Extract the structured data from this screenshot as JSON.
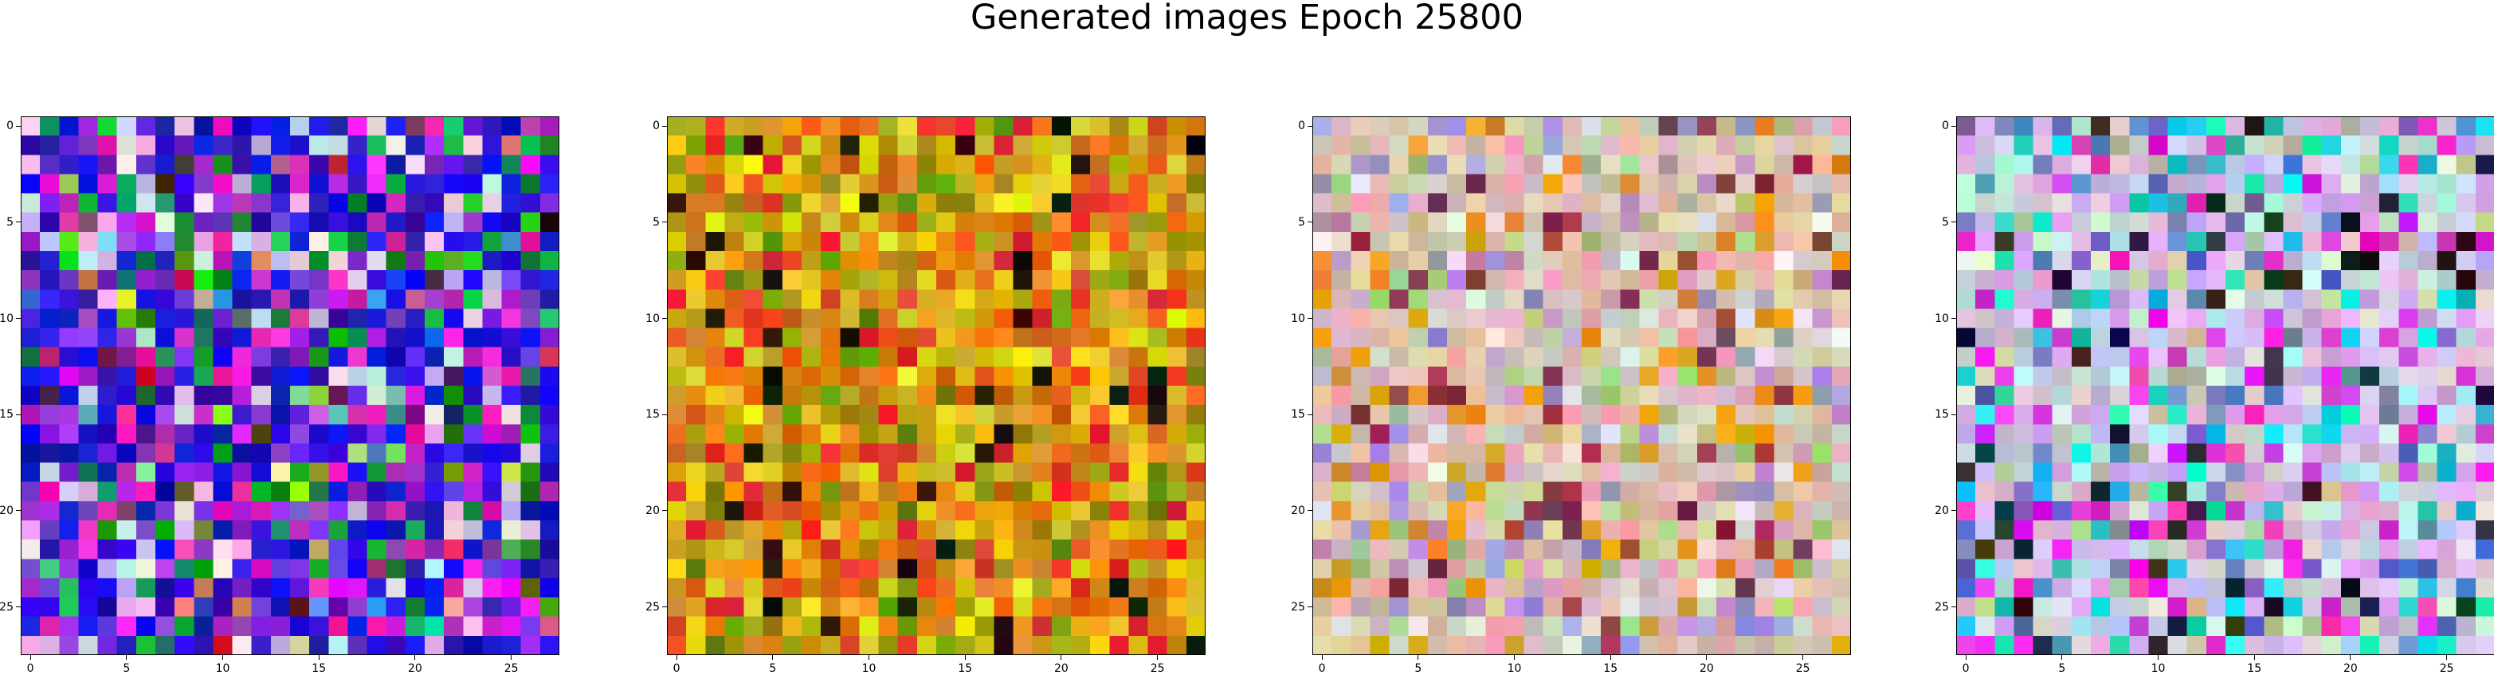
{
  "figure": {
    "title": "Generated images Epoch 25800"
  },
  "panels": [
    {
      "name": "generated-image-1",
      "palette": "blue-purple"
    },
    {
      "name": "generated-image-2",
      "palette": "yellow-orange"
    },
    {
      "name": "generated-image-3",
      "palette": "beige-muted"
    },
    {
      "name": "generated-image-4",
      "palette": "lilac-mixed"
    }
  ],
  "grid": {
    "rows": 28,
    "cols": 28
  },
  "axes": {
    "x_ticks": [
      "0",
      "5",
      "10",
      "15",
      "20",
      "25"
    ],
    "y_ticks": [
      "0",
      "5",
      "10",
      "15",
      "20",
      "25"
    ]
  }
}
